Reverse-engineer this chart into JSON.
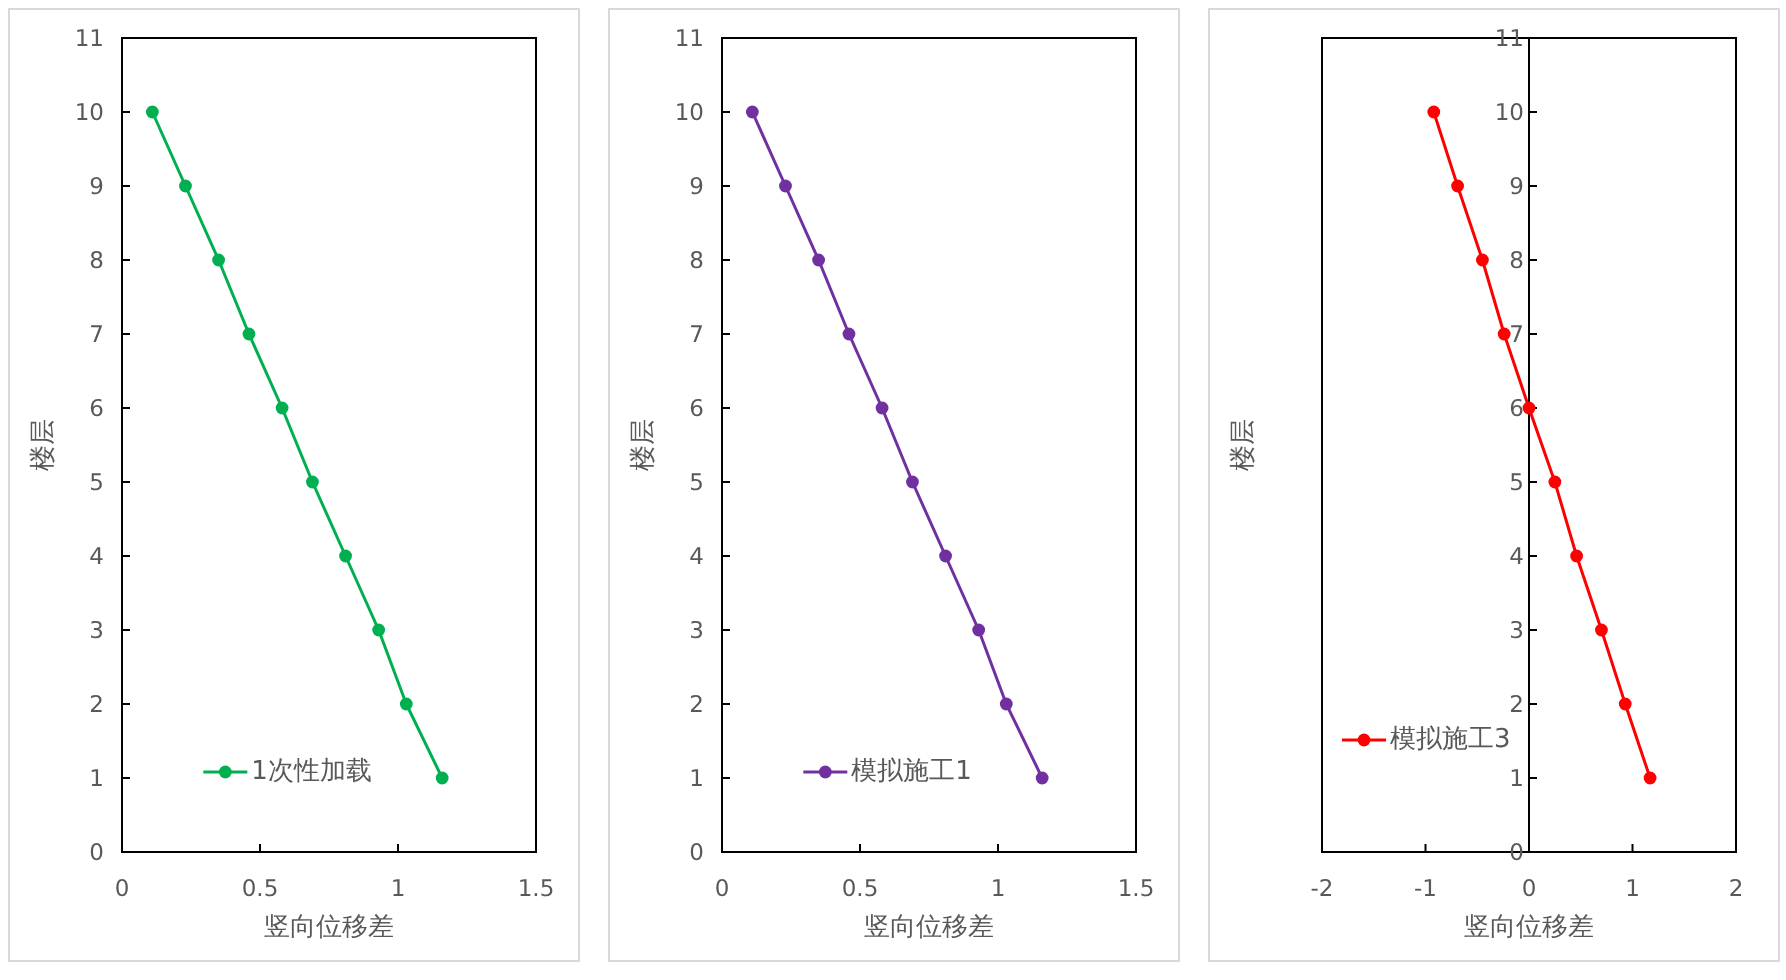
{
  "chart_data": [
    {
      "type": "line",
      "xlabel": "竖向位移差",
      "ylabel": "楼层",
      "series": [
        {
          "name": "1次性加载",
          "color": "#00b050",
          "x": [
            0.11,
            0.23,
            0.35,
            0.46,
            0.58,
            0.69,
            0.81,
            0.93,
            1.03,
            1.16
          ],
          "values": [
            10,
            9,
            8,
            7,
            6,
            5,
            4,
            3,
            2,
            1
          ]
        }
      ],
      "xlim": [
        0,
        1.5
      ],
      "xticks": [
        0,
        0.5,
        1,
        1.5
      ],
      "ylim": [
        0,
        11
      ],
      "yticks": [
        0,
        1,
        2,
        3,
        4,
        5,
        6,
        7,
        8,
        9,
        10,
        11
      ],
      "marker": "circle",
      "legend": "bottom",
      "grid": false
    },
    {
      "type": "line",
      "xlabel": "竖向位移差",
      "ylabel": "楼层",
      "series": [
        {
          "name": "模拟施工1",
          "color": "#7030a0",
          "x": [
            0.11,
            0.23,
            0.35,
            0.46,
            0.58,
            0.69,
            0.81,
            0.93,
            1.03,
            1.16
          ],
          "values": [
            10,
            9,
            8,
            7,
            6,
            5,
            4,
            3,
            2,
            1
          ]
        }
      ],
      "xlim": [
        0,
        1.5
      ],
      "xticks": [
        0,
        0.5,
        1,
        1.5
      ],
      "ylim": [
        0,
        11
      ],
      "yticks": [
        0,
        1,
        2,
        3,
        4,
        5,
        6,
        7,
        8,
        9,
        10,
        11
      ],
      "marker": "circle",
      "legend": "bottom",
      "grid": false
    },
    {
      "type": "line",
      "xlabel": "竖向位移差",
      "ylabel": "楼层",
      "series": [
        {
          "name": "模拟施工3",
          "color": "#ff0000",
          "x": [
            -0.92,
            -0.69,
            -0.45,
            -0.24,
            0.0,
            0.25,
            0.46,
            0.7,
            0.93,
            1.17
          ],
          "values": [
            10,
            9,
            8,
            7,
            6,
            5,
            4,
            3,
            2,
            1
          ]
        }
      ],
      "xlim": [
        -2,
        2
      ],
      "xticks": [
        -2,
        -1,
        0,
        1,
        2
      ],
      "ylim": [
        0,
        11
      ],
      "yticks": [
        0,
        1,
        2,
        3,
        4,
        5,
        6,
        7,
        8,
        9,
        10,
        11
      ],
      "marker": "circle",
      "legend": "bottom left",
      "grid": false
    }
  ]
}
